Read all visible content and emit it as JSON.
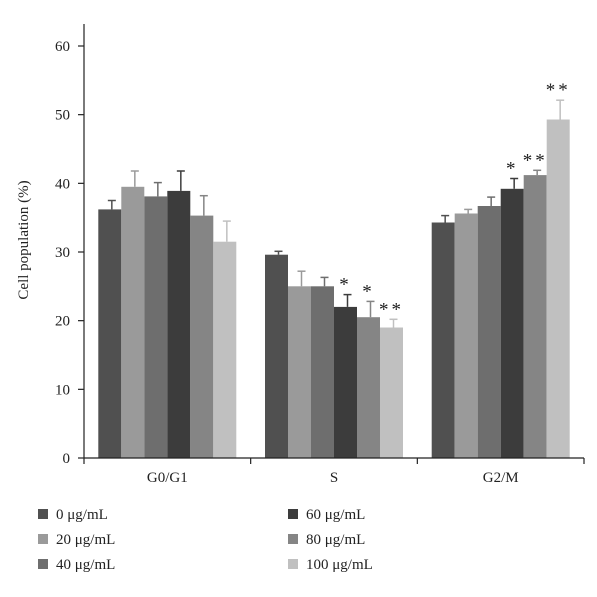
{
  "chart_data": {
    "type": "bar",
    "title": "",
    "xlabel": "",
    "ylabel": "Cell population (%)",
    "ylim": [
      0,
      60
    ],
    "yticks": [
      0,
      10,
      20,
      30,
      40,
      50,
      60
    ],
    "categories": [
      "G0/G1",
      "S",
      "G2/M"
    ],
    "series": [
      {
        "name": "0 μg/mL",
        "color": "#505050",
        "values": [
          36.2,
          29.6,
          34.3
        ],
        "errors": [
          1.3,
          0.5,
          1.0
        ],
        "significance": [
          "",
          "",
          ""
        ]
      },
      {
        "name": "20 μg/mL",
        "color": "#9a9a9a",
        "values": [
          39.5,
          25.0,
          35.6
        ],
        "errors": [
          2.3,
          2.2,
          0.6
        ],
        "significance": [
          "",
          "",
          ""
        ]
      },
      {
        "name": "40 μg/mL",
        "color": "#6e6e6e",
        "values": [
          38.1,
          25.0,
          36.7
        ],
        "errors": [
          2.0,
          1.3,
          1.3
        ],
        "significance": [
          "",
          "",
          ""
        ]
      },
      {
        "name": "60 μg/mL",
        "color": "#3c3c3c",
        "values": [
          38.9,
          22.0,
          39.2
        ],
        "errors": [
          2.9,
          1.8,
          1.5
        ],
        "significance": [
          "",
          "*",
          "*"
        ]
      },
      {
        "name": "80 μg/mL",
        "color": "#858585",
        "values": [
          35.3,
          20.5,
          41.2
        ],
        "errors": [
          2.9,
          2.3,
          0.7
        ],
        "significance": [
          "",
          "*",
          "**"
        ]
      },
      {
        "name": "100 μg/mL",
        "color": "#c0c0c0",
        "values": [
          31.5,
          19.0,
          49.3
        ],
        "errors": [
          3.0,
          1.2,
          2.8
        ],
        "significance": [
          "",
          "**",
          "**"
        ]
      }
    ],
    "legend": {
      "position": "bottom",
      "items": [
        "0 μg/mL",
        "20 μg/mL",
        "40 μg/mL",
        "60 μg/mL",
        "80 μg/mL",
        "100 μg/mL"
      ]
    }
  }
}
